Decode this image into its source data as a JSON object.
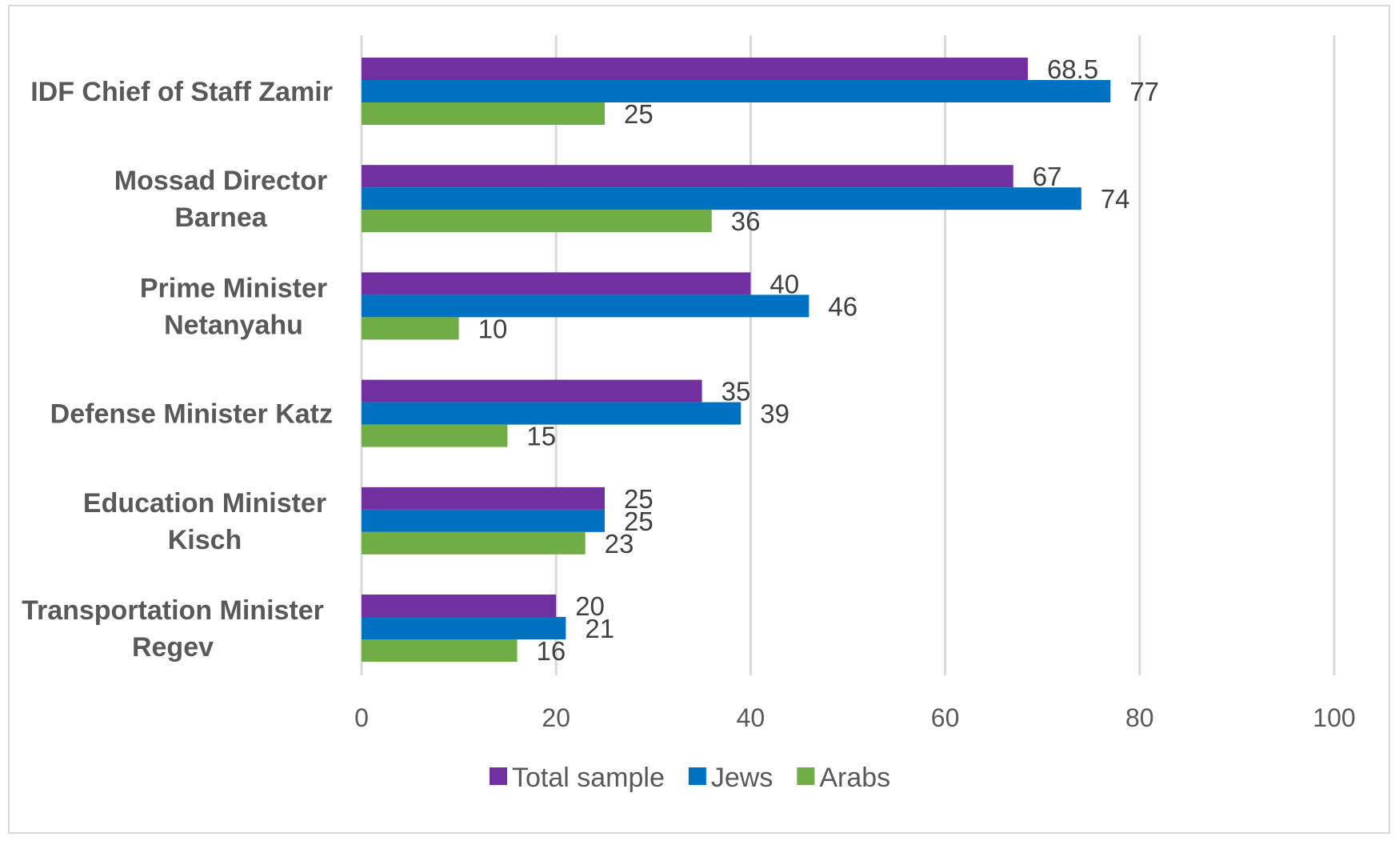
{
  "chart_data": {
    "type": "bar",
    "orientation": "horizontal",
    "categories": [
      [
        "IDF Chief of Staff Zamir"
      ],
      [
        "Mossad Director",
        "Barnea"
      ],
      [
        "Prime Minister",
        "Netanyahu"
      ],
      [
        "Defense Minister Katz"
      ],
      [
        "Education Minister",
        "Kisch"
      ],
      [
        "Transportation Minister",
        "Regev"
      ]
    ],
    "series": [
      {
        "name": "Total sample",
        "color": "#7030a0",
        "values": [
          68.5,
          67,
          40,
          35,
          25,
          20
        ]
      },
      {
        "name": "Jews",
        "color": "#0070c0",
        "values": [
          77,
          74,
          46,
          39,
          25,
          21
        ]
      },
      {
        "name": "Arabs",
        "color": "#70ad47",
        "values": [
          25,
          36,
          10,
          15,
          23,
          16
        ]
      }
    ],
    "xlim": [
      0,
      100
    ],
    "xticks": [
      0,
      20,
      40,
      60,
      80,
      100
    ],
    "grid": true,
    "legend_position": "bottom",
    "data_labels": true
  }
}
